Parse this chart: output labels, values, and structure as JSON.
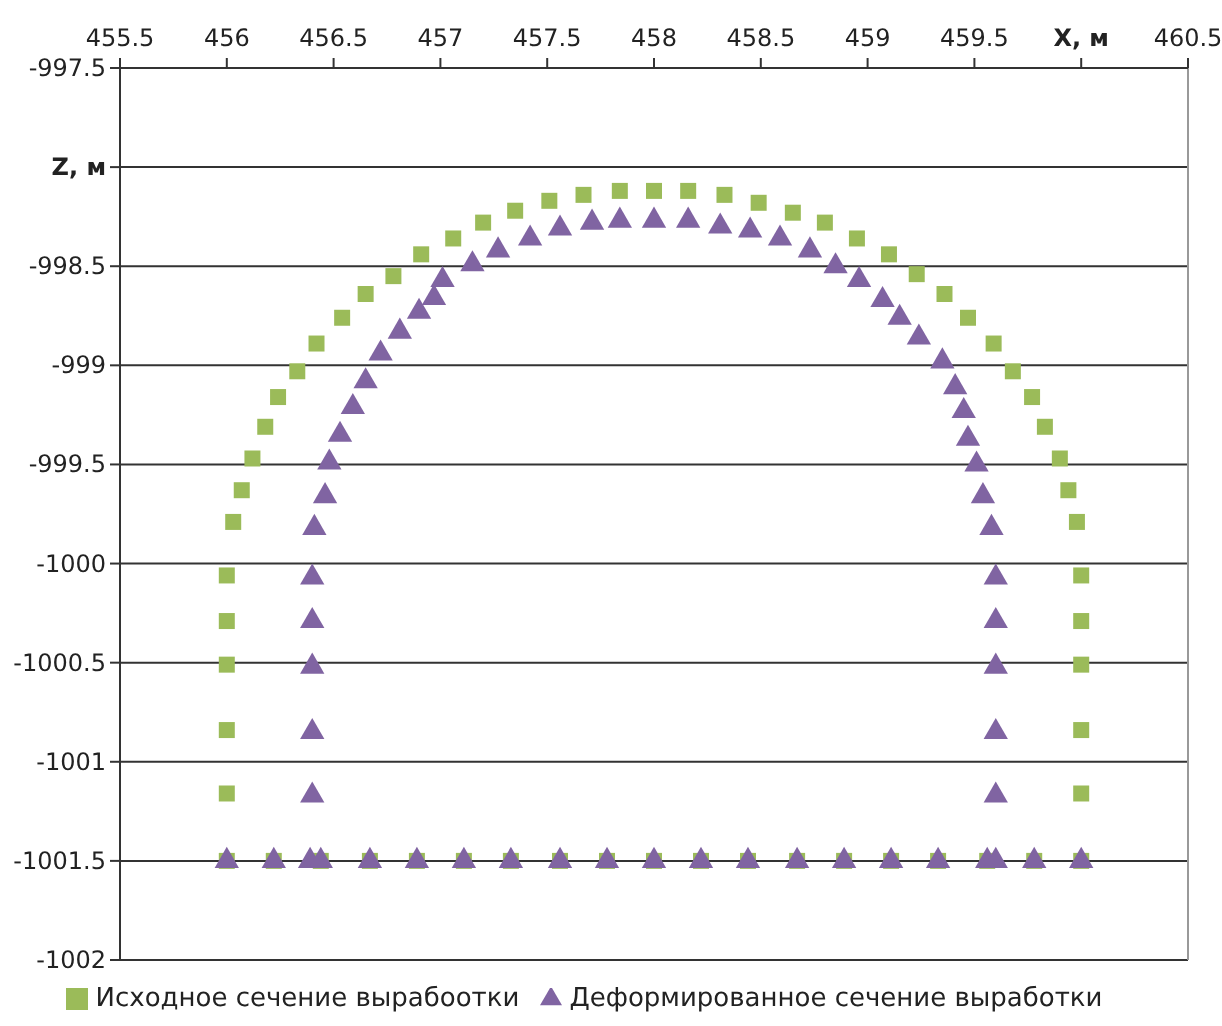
{
  "chart_data": {
    "type": "scatter",
    "xlim": [
      455.5,
      460.5
    ],
    "xticks": [
      455.5,
      456,
      456.5,
      457,
      457.5,
      458,
      458.5,
      459,
      459.5,
      {
        "value": 460,
        "label": "X, м"
      },
      460.5
    ],
    "ylim": [
      -1002,
      -997.5
    ],
    "yticks": [
      -997.5,
      {
        "value": -998,
        "label": "Z, м"
      },
      -998.5,
      -999,
      -999.5,
      -1000,
      -1000.5,
      -1001,
      -1001.5,
      -1002
    ],
    "grid": "y",
    "legend": "bottom",
    "series": [
      {
        "name": "Исходное сечение вырабоотки",
        "color": "#9bbb59",
        "marker": "square",
        "x": [
          456.0,
          456.0,
          456.0,
          456.0,
          456.0,
          456.0,
          456.03,
          456.07,
          456.12,
          456.18,
          456.24,
          456.33,
          456.42,
          456.54,
          456.65,
          456.78,
          456.91,
          457.06,
          457.2,
          457.35,
          457.51,
          457.67,
          457.84,
          458.0,
          458.16,
          458.33,
          458.49,
          458.65,
          458.8,
          458.95,
          459.1,
          459.23,
          459.36,
          459.47,
          459.59,
          459.68,
          459.77,
          459.83,
          459.9,
          459.94,
          459.98,
          460.0,
          460.0,
          460.0,
          460.0,
          460.0,
          460.0,
          456.22,
          456.44,
          456.67,
          456.89,
          457.11,
          457.33,
          457.56,
          457.78,
          458.0,
          458.22,
          458.44,
          458.67,
          458.89,
          459.11,
          459.33,
          459.56,
          459.78
        ],
        "values": [
          -1001.5,
          -1001.16,
          -1000.84,
          -1000.51,
          -1000.29,
          -1000.06,
          -999.79,
          -999.63,
          -999.47,
          -999.31,
          -999.16,
          -999.03,
          -998.89,
          -998.76,
          -998.64,
          -998.55,
          -998.44,
          -998.36,
          -998.28,
          -998.22,
          -998.17,
          -998.14,
          -998.12,
          -998.12,
          -998.12,
          -998.14,
          -998.18,
          -998.23,
          -998.28,
          -998.36,
          -998.44,
          -998.54,
          -998.64,
          -998.76,
          -998.89,
          -999.03,
          -999.16,
          -999.31,
          -999.47,
          -999.63,
          -999.79,
          -1000.06,
          -1000.29,
          -1000.51,
          -1000.84,
          -1001.16,
          -1001.5,
          -1001.5,
          -1001.5,
          -1001.5,
          -1001.5,
          -1001.5,
          -1001.5,
          -1001.5,
          -1001.5,
          -1001.5,
          -1001.5,
          -1001.5,
          -1001.5,
          -1001.5,
          -1001.5,
          -1001.5,
          -1001.5,
          -1001.5
        ]
      },
      {
        "name": "Деформированное сечение выработки",
        "color": "#8064a2",
        "marker": "triangle",
        "x": [
          456.0,
          456.22,
          456.39,
          456.44,
          456.67,
          456.89,
          457.11,
          457.33,
          457.56,
          457.78,
          458.0,
          458.22,
          458.44,
          458.67,
          458.89,
          459.11,
          459.33,
          459.56,
          459.6,
          459.78,
          460.0,
          456.4,
          456.4,
          456.4,
          456.4,
          456.4,
          456.41,
          456.46,
          456.48,
          456.53,
          456.59,
          456.65,
          456.72,
          456.81,
          456.9,
          456.97,
          457.01,
          457.15,
          457.27,
          457.42,
          457.56,
          457.71,
          457.84,
          458.0,
          458.16,
          458.31,
          458.45,
          458.59,
          458.73,
          458.85,
          458.96,
          459.07,
          459.15,
          459.24,
          459.35,
          459.41,
          459.45,
          459.47,
          459.51,
          459.54,
          459.58,
          459.6,
          459.6,
          459.6,
          459.6,
          459.6
        ],
        "values": [
          -1001.5,
          -1001.5,
          -1001.5,
          -1001.5,
          -1001.5,
          -1001.5,
          -1001.5,
          -1001.5,
          -1001.5,
          -1001.5,
          -1001.5,
          -1001.5,
          -1001.5,
          -1001.5,
          -1001.5,
          -1001.5,
          -1001.5,
          -1001.5,
          -1001.5,
          -1001.5,
          -1001.5,
          -1001.17,
          -1000.85,
          -1000.52,
          -1000.29,
          -1000.07,
          -999.82,
          -999.66,
          -999.49,
          -999.35,
          -999.21,
          -999.08,
          -998.94,
          -998.83,
          -998.73,
          -998.66,
          -998.57,
          -998.49,
          -998.42,
          -998.36,
          -998.31,
          -998.28,
          -998.27,
          -998.27,
          -998.27,
          -998.3,
          -998.32,
          -998.36,
          -998.42,
          -998.5,
          -998.57,
          -998.67,
          -998.76,
          -998.86,
          -998.98,
          -999.11,
          -999.23,
          -999.37,
          -999.5,
          -999.66,
          -999.82,
          -1000.07,
          -1000.29,
          -1000.52,
          -1000.85,
          -1001.17
        ]
      }
    ]
  }
}
